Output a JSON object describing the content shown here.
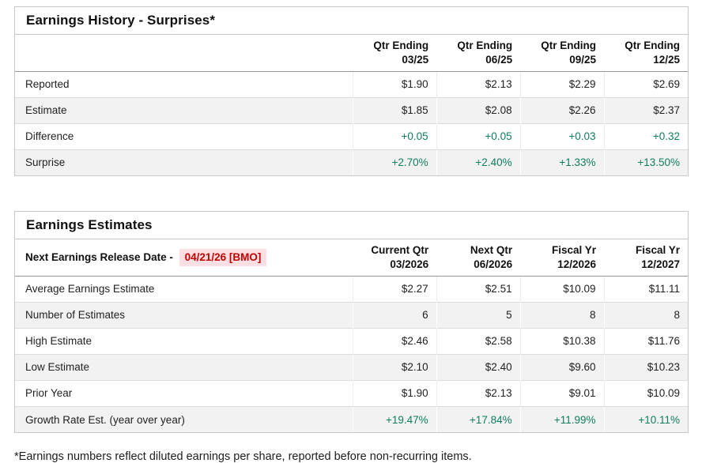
{
  "colors": {
    "positive": "#0f7d5e",
    "alert_red": "#c40000",
    "alert_bg": "#fbdfe2",
    "row_alt": "#f2f2f2"
  },
  "earnings_history": {
    "title": "Earnings History - Surprises*",
    "columns": [
      {
        "line1": "Qtr Ending",
        "line2": "03/25"
      },
      {
        "line1": "Qtr Ending",
        "line2": "06/25"
      },
      {
        "line1": "Qtr Ending",
        "line2": "09/25"
      },
      {
        "line1": "Qtr Ending",
        "line2": "12/25"
      }
    ],
    "rows": [
      {
        "label": "Reported",
        "values": [
          "$1.90",
          "$2.13",
          "$2.29",
          "$2.69"
        ],
        "positive": false
      },
      {
        "label": "Estimate",
        "values": [
          "$1.85",
          "$2.08",
          "$2.26",
          "$2.37"
        ],
        "positive": false
      },
      {
        "label": "Difference",
        "values": [
          "+0.05",
          "+0.05",
          "+0.03",
          "+0.32"
        ],
        "positive": true
      },
      {
        "label": "Surprise",
        "values": [
          "+2.70%",
          "+2.40%",
          "+1.33%",
          "+13.50%"
        ],
        "positive": true
      }
    ]
  },
  "earnings_estimates": {
    "title": "Earnings Estimates",
    "release_label": "Next Earnings Release Date -",
    "release_date": "04/21/26 [BMO]",
    "columns": [
      {
        "line1": "Current Qtr",
        "line2": "03/2026"
      },
      {
        "line1": "Next Qtr",
        "line2": "06/2026"
      },
      {
        "line1": "Fiscal Yr",
        "line2": "12/2026"
      },
      {
        "line1": "Fiscal Yr",
        "line2": "12/2027"
      }
    ],
    "rows": [
      {
        "label": "Average Earnings Estimate",
        "values": [
          "$2.27",
          "$2.51",
          "$10.09",
          "$11.11"
        ],
        "positive": false
      },
      {
        "label": "Number of Estimates",
        "values": [
          "6",
          "5",
          "8",
          "8"
        ],
        "positive": false
      },
      {
        "label": "High Estimate",
        "values": [
          "$2.46",
          "$2.58",
          "$10.38",
          "$11.76"
        ],
        "positive": false
      },
      {
        "label": "Low Estimate",
        "values": [
          "$2.10",
          "$2.40",
          "$9.60",
          "$10.23"
        ],
        "positive": false
      },
      {
        "label": "Prior Year",
        "values": [
          "$1.90",
          "$2.13",
          "$9.01",
          "$10.09"
        ],
        "positive": false
      },
      {
        "label": "Growth Rate Est. (year over year)",
        "values": [
          "+19.47%",
          "+17.84%",
          "+11.99%",
          "+10.11%"
        ],
        "positive": true
      }
    ]
  },
  "footnote": "*Earnings numbers reflect diluted earnings per share, reported before non-recurring items."
}
